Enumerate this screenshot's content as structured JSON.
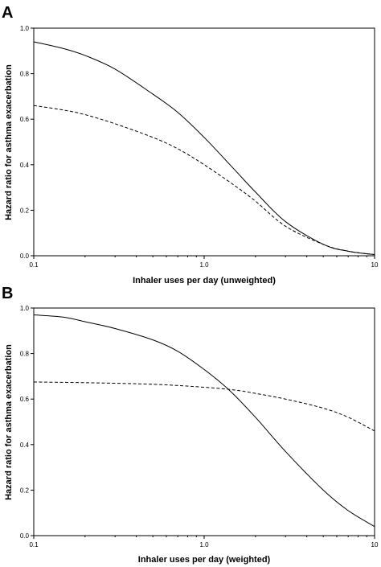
{
  "chart_data": [
    {
      "panel": "A",
      "type": "line",
      "xlabel": "Inhaler uses per day (unweighted)",
      "ylabel": "Hazard ratio for asthma exacerbation",
      "xscale": "log",
      "xlim": [
        0.1,
        10
      ],
      "ylim": [
        0.0,
        1.0
      ],
      "xticks": [
        {
          "value": 0.1,
          "label": "0.1"
        },
        {
          "value": 1,
          "label": "1.0"
        },
        {
          "value": 10,
          "label": "10"
        }
      ],
      "yticks": [
        {
          "value": 0.0,
          "label": "0.0"
        },
        {
          "value": 0.2,
          "label": "0.2"
        },
        {
          "value": 0.4,
          "label": "0.4"
        },
        {
          "value": 0.6,
          "label": "0.6"
        },
        {
          "value": 0.8,
          "label": "0.8"
        },
        {
          "value": 1.0,
          "label": "1.0"
        }
      ],
      "series": [
        {
          "style": "solid",
          "x": [
            0.1,
            0.15,
            0.2,
            0.3,
            0.5,
            0.7,
            1.0,
            1.5,
            2.0,
            3.0,
            5.0,
            7.0,
            10.0
          ],
          "y": [
            0.94,
            0.91,
            0.88,
            0.82,
            0.71,
            0.63,
            0.52,
            0.38,
            0.28,
            0.15,
            0.05,
            0.02,
            0.005
          ]
        },
        {
          "style": "dashed",
          "x": [
            0.1,
            0.15,
            0.2,
            0.3,
            0.5,
            0.7,
            1.0,
            1.5,
            2.0,
            3.0,
            5.0,
            7.0,
            10.0
          ],
          "y": [
            0.66,
            0.64,
            0.62,
            0.58,
            0.52,
            0.47,
            0.4,
            0.31,
            0.24,
            0.13,
            0.05,
            0.02,
            0.005
          ]
        }
      ]
    },
    {
      "panel": "B",
      "type": "line",
      "xlabel": "Inhaler uses per day (weighted)",
      "ylabel": "Hazard ratio for asthma exacerbation",
      "xscale": "log",
      "xlim": [
        0.1,
        10
      ],
      "ylim": [
        0.0,
        1.0
      ],
      "xticks": [
        {
          "value": 0.1,
          "label": "0.1"
        },
        {
          "value": 1,
          "label": "1.0"
        },
        {
          "value": 10,
          "label": "10"
        }
      ],
      "yticks": [
        {
          "value": 0.0,
          "label": "0.0"
        },
        {
          "value": 0.2,
          "label": "0.2"
        },
        {
          "value": 0.4,
          "label": "0.4"
        },
        {
          "value": 0.6,
          "label": "0.6"
        },
        {
          "value": 0.8,
          "label": "0.8"
        },
        {
          "value": 1.0,
          "label": "1.0"
        }
      ],
      "series": [
        {
          "style": "solid",
          "x": [
            0.1,
            0.15,
            0.2,
            0.3,
            0.5,
            0.7,
            1.0,
            1.4,
            2.0,
            3.0,
            5.0,
            7.0,
            10.0
          ],
          "y": [
            0.97,
            0.96,
            0.94,
            0.91,
            0.86,
            0.81,
            0.73,
            0.64,
            0.52,
            0.37,
            0.2,
            0.11,
            0.04
          ]
        },
        {
          "style": "dashed",
          "x": [
            0.1,
            0.2,
            0.5,
            1.0,
            1.5,
            2.0,
            3.0,
            5.0,
            7.0,
            10.0
          ],
          "y": [
            0.675,
            0.672,
            0.665,
            0.652,
            0.64,
            0.625,
            0.6,
            0.56,
            0.52,
            0.46
          ]
        }
      ]
    }
  ]
}
